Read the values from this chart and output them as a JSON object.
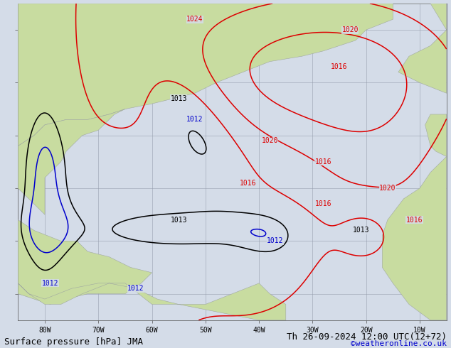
{
  "title_left": "Surface pressure [hPa] JMA",
  "title_right": "Th 26-09-2024 12:00 UTC(12+72)",
  "copyright": "©weatheronline.co.uk",
  "ocean_color": "#d4dce8",
  "land_color": "#c8dca0",
  "land_edge_color": "#a0a8a0",
  "grid_color": "#9098a8",
  "contour_red": "#dd0000",
  "contour_black": "#000000",
  "contour_blue": "#0000cc",
  "font_size_label": 7,
  "font_size_title": 9,
  "font_size_copyright": 8,
  "lon_min": -85,
  "lon_max": -5,
  "lat_min": 5,
  "lat_max": 65
}
